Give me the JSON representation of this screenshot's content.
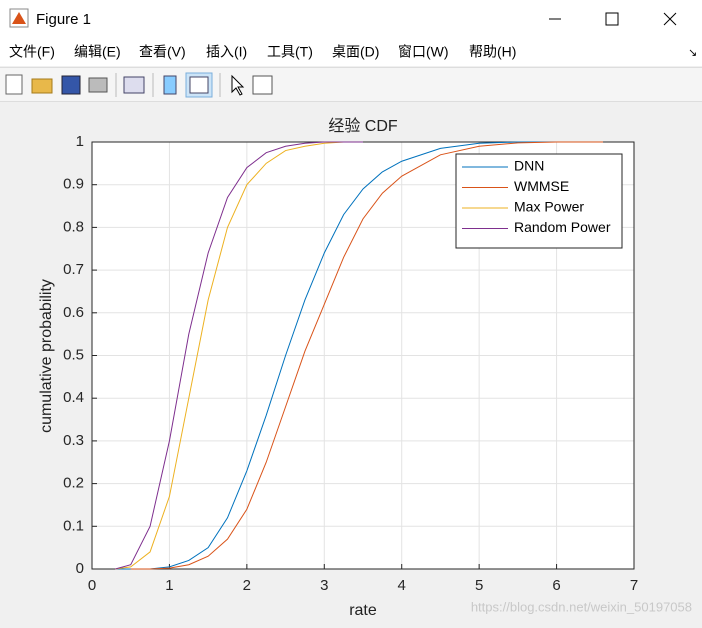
{
  "window": {
    "title": "Figure 1",
    "menus": [
      "文件(F)",
      "编辑(E)",
      "查看(V)",
      "插入(I)",
      "工具(T)",
      "桌面(D)",
      "窗口(W)",
      "帮助(H)"
    ],
    "watermark": "https://blog.csdn.net/weixin_50197058"
  },
  "chart_data": {
    "type": "line",
    "title": "经验 CDF",
    "x_label": "rate",
    "y_label": "cumulative probability",
    "x": [
      0.3,
      0.5,
      0.75,
      1,
      1.25,
      1.5,
      1.75,
      2,
      2.25,
      2.5,
      2.75,
      3,
      3.25,
      3.5,
      3.75,
      4,
      4.5,
      5,
      5.5,
      6,
      6.6
    ],
    "series": [
      {
        "name": "DNN",
        "color": "#0072bd",
        "values": [
          0,
          0,
          0,
          0.005,
          0.02,
          0.05,
          0.12,
          0.23,
          0.36,
          0.5,
          0.63,
          0.74,
          0.83,
          0.89,
          0.93,
          0.955,
          0.985,
          0.997,
          1,
          1,
          1
        ]
      },
      {
        "name": "WMMSE",
        "color": "#d95319",
        "values": [
          null,
          0,
          0,
          0.002,
          0.01,
          0.03,
          0.07,
          0.14,
          0.25,
          0.38,
          0.51,
          0.62,
          0.73,
          0.82,
          0.88,
          0.92,
          0.97,
          0.99,
          0.998,
          1,
          1
        ]
      },
      {
        "name": "Max Power",
        "color": "#edb120",
        "values": [
          0,
          0.005,
          0.04,
          0.17,
          0.4,
          0.63,
          0.8,
          0.9,
          0.95,
          0.98,
          0.99,
          0.997,
          1,
          1,
          null,
          null,
          null,
          null,
          null,
          null,
          null
        ]
      },
      {
        "name": "Random Power",
        "color": "#7e2f8e",
        "values": [
          0,
          0.01,
          0.1,
          0.3,
          0.55,
          0.74,
          0.87,
          0.94,
          0.975,
          0.99,
          0.997,
          1,
          1,
          1,
          null,
          null,
          null,
          null,
          null,
          null,
          null
        ]
      }
    ],
    "xlim": [
      0,
      7
    ],
    "xticks": [
      0,
      1,
      2,
      3,
      4,
      5,
      6,
      7
    ],
    "ylim": [
      0,
      1
    ],
    "yticks": [
      0,
      0.1,
      0.2,
      0.3,
      0.4,
      0.5,
      0.6,
      0.7,
      0.8,
      0.9,
      1
    ],
    "grid": true,
    "legend": "upper right"
  }
}
